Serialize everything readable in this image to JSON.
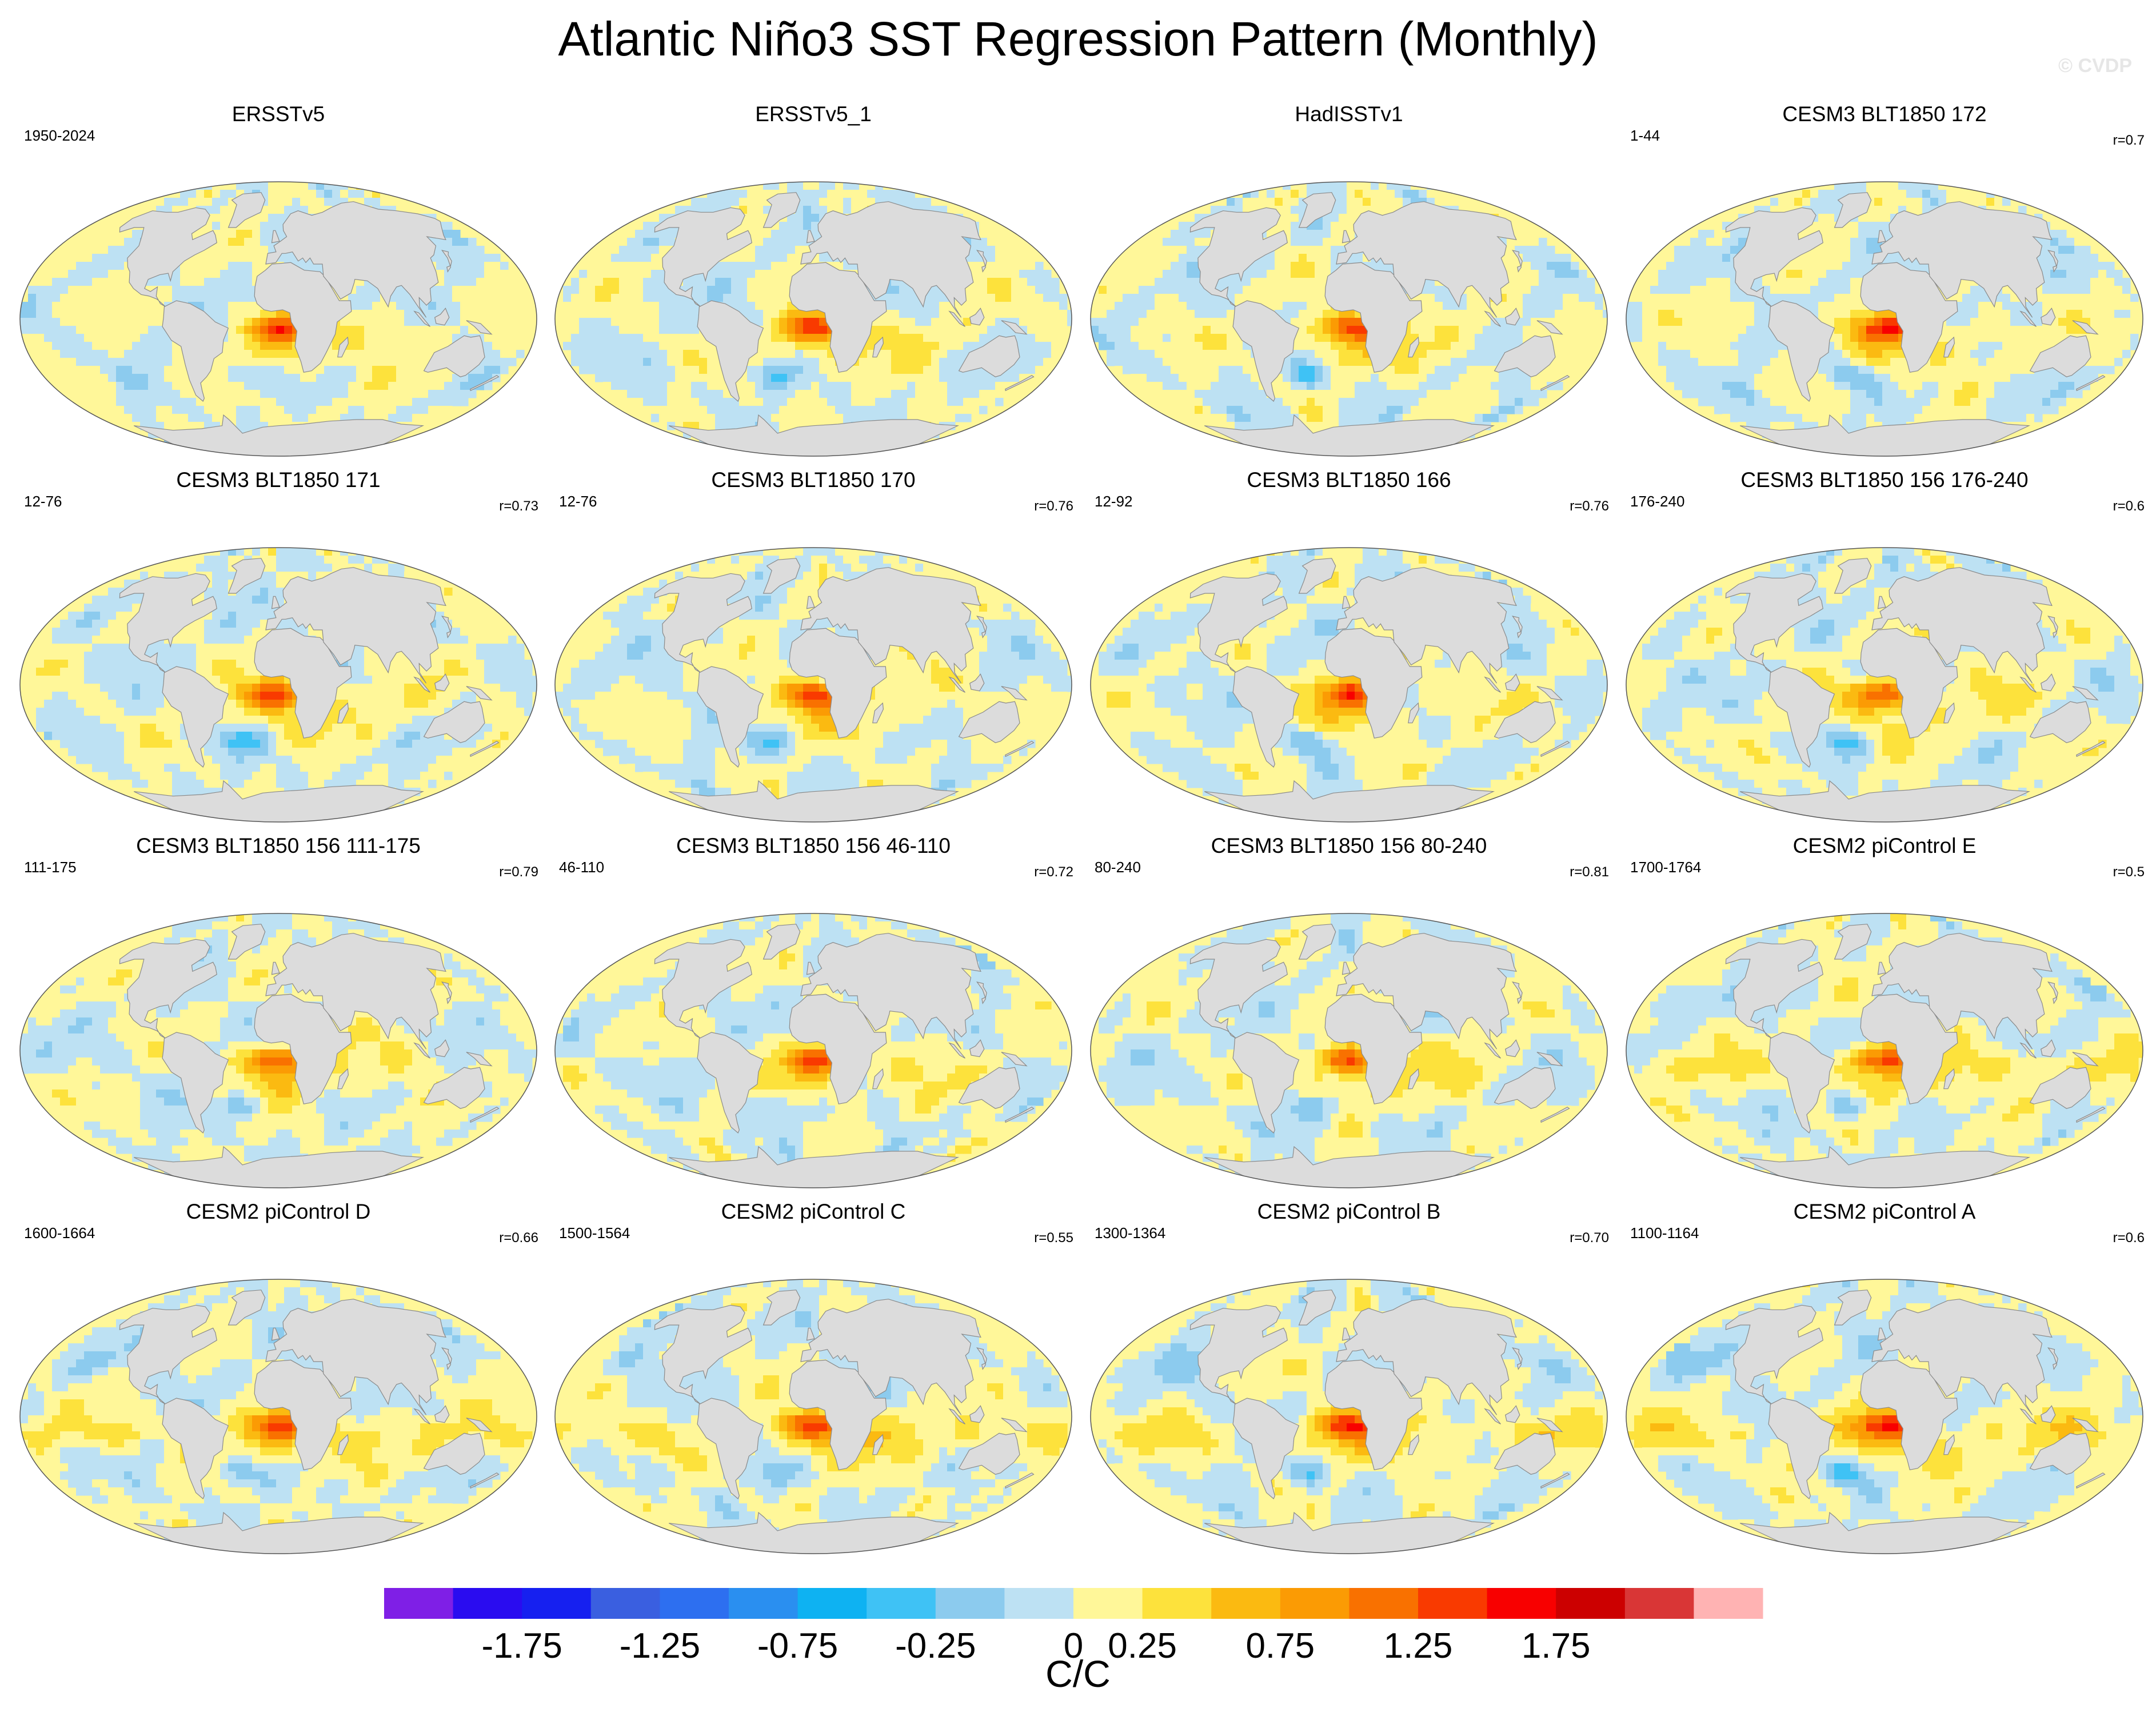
{
  "chart_data": {
    "type": "heatmap",
    "title": "Atlantic Niño3 SST Regression Pattern (Monthly)",
    "watermark": "© CVDP",
    "units_label": "C/C",
    "colorbar": {
      "colors": [
        "#7f1fe6",
        "#2a0cf0",
        "#1620f0",
        "#3a5fe0",
        "#2d6ff0",
        "#2a8ff0",
        "#0eb2f2",
        "#3fc2f5",
        "#8ccbee",
        "#bde1f3",
        "#fff799",
        "#fde23c",
        "#fbba11",
        "#fb9b04",
        "#f97100",
        "#f93a00",
        "#f80000",
        "#cc0000",
        "#d93636",
        "#ffb3b3"
      ],
      "tick_labels": [
        "-1.75",
        "-1.25",
        "-0.75",
        "-0.25",
        "0",
        "0.25",
        "0.75",
        "1.25",
        "1.75"
      ],
      "tick_boundaries": [
        2,
        4,
        6,
        8,
        10,
        11,
        13,
        15,
        17
      ]
    },
    "panels": [
      {
        "title": "ERSSTv5",
        "years": "1950-2024",
        "corr": "",
        "pattern": 0
      },
      {
        "title": "ERSSTv5_1",
        "years": "",
        "corr": "",
        "pattern": 1
      },
      {
        "title": "HadISSTv1",
        "years": "",
        "corr": "",
        "pattern": 2
      },
      {
        "title": "CESM3 BLT1850 172",
        "years": "1-44",
        "corr": "r=0.7",
        "pattern": 3
      },
      {
        "title": "CESM3 BLT1850 171",
        "years": "12-76",
        "corr": "r=0.73",
        "pattern": 4
      },
      {
        "title": "CESM3 BLT1850 170",
        "years": "12-76",
        "corr": "r=0.76",
        "pattern": 5
      },
      {
        "title": "CESM3 BLT1850 166",
        "years": "12-92",
        "corr": "r=0.76",
        "pattern": 6
      },
      {
        "title": "CESM3 BLT1850 156 176-240",
        "years": "176-240",
        "corr": "r=0.6",
        "pattern": 7
      },
      {
        "title": "CESM3 BLT1850 156 111-175",
        "years": "111-175",
        "corr": "r=0.79",
        "pattern": 8
      },
      {
        "title": "CESM3 BLT1850 156 46-110",
        "years": "46-110",
        "corr": "r=0.72",
        "pattern": 9
      },
      {
        "title": "CESM3 BLT1850 156 80-240",
        "years": "80-240",
        "corr": "r=0.81",
        "pattern": 10
      },
      {
        "title": "CESM2 piControl E",
        "years": "1700-1764",
        "corr": "r=0.5",
        "pattern": 11
      },
      {
        "title": "CESM2 piControl D",
        "years": "1600-1664",
        "corr": "r=0.66",
        "pattern": 12
      },
      {
        "title": "CESM2 piControl C",
        "years": "1500-1564",
        "corr": "r=0.55",
        "pattern": 13
      },
      {
        "title": "CESM2 piControl B",
        "years": "1300-1364",
        "corr": "r=0.70",
        "pattern": 14
      },
      {
        "title": "CESM2 piControl A",
        "years": "1100-1164",
        "corr": "r=0.6",
        "pattern": 15
      }
    ]
  }
}
